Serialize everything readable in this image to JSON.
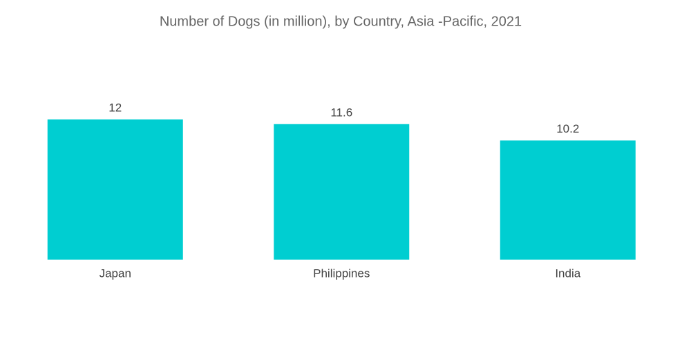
{
  "chart_data": {
    "type": "bar",
    "title": "Number of Dogs (in million), by Country, Asia -Pacific, 2021",
    "categories": [
      "Japan",
      "Philippines",
      "India"
    ],
    "values": [
      12,
      11.6,
      10.2
    ],
    "color": "#00ced1"
  }
}
